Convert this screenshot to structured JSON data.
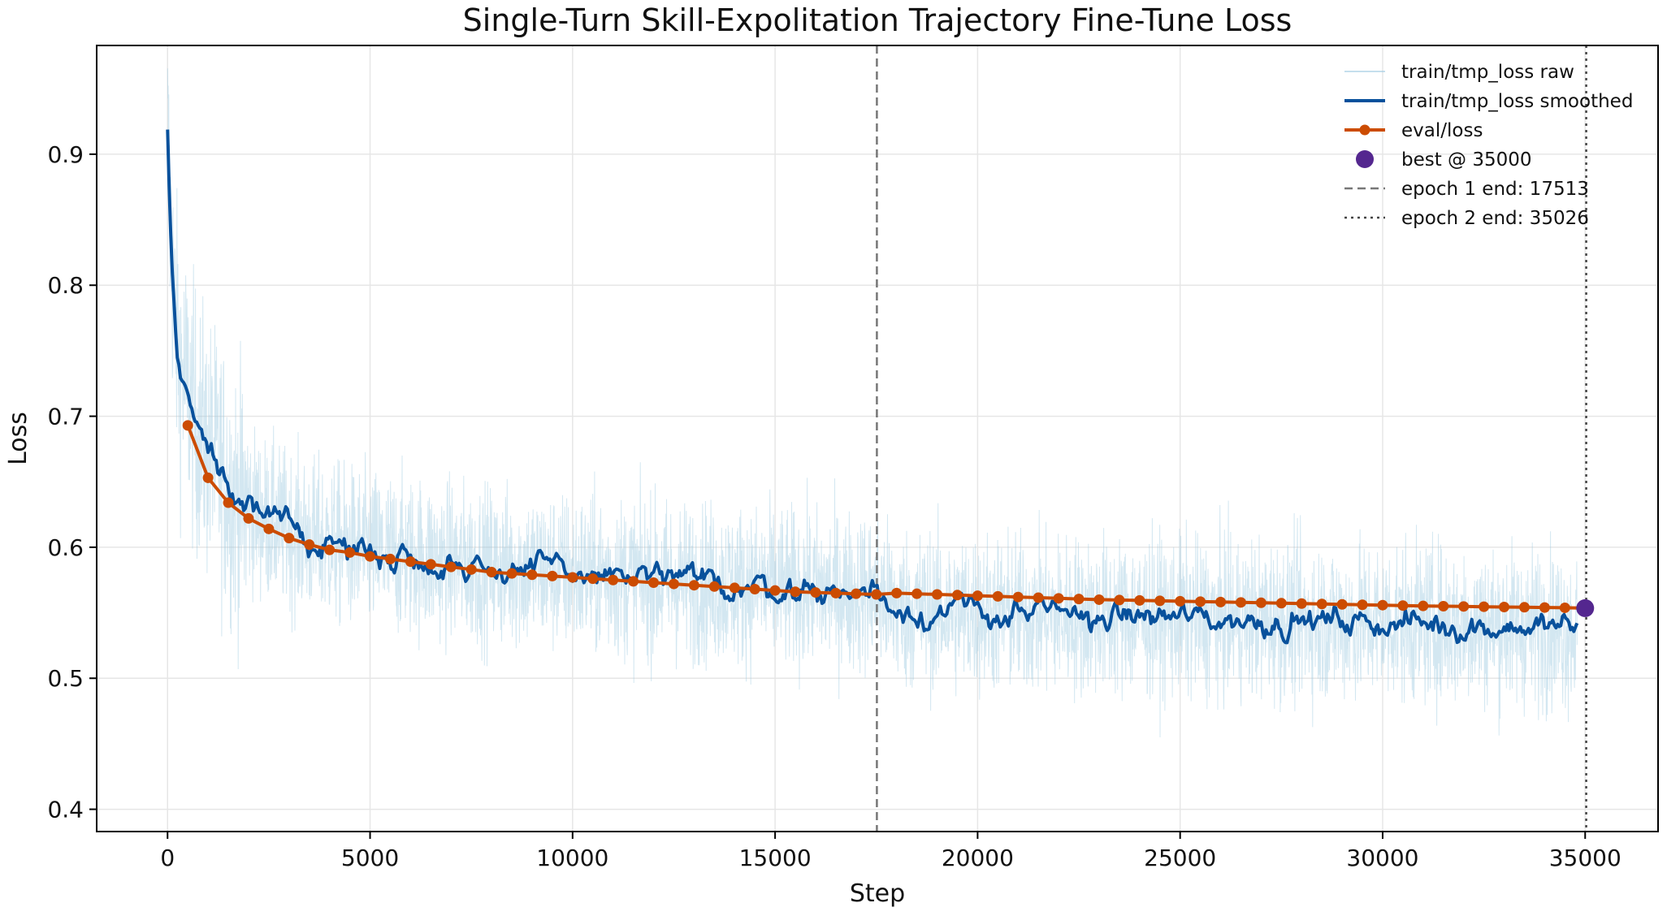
{
  "chart_data": {
    "type": "line",
    "title": "Single-Turn Skill-Expolitation Trajectory Fine-Tune Loss",
    "xlabel": "Step",
    "ylabel": "Loss",
    "xlim": [
      -1750,
      36800
    ],
    "ylim": [
      0.383,
      0.983
    ],
    "x_ticks": [
      0,
      5000,
      10000,
      15000,
      20000,
      25000,
      30000,
      35000
    ],
    "y_ticks": [
      0.4,
      0.5,
      0.6,
      0.7,
      0.8,
      0.9
    ],
    "grid": true,
    "legend_position": "top-right",
    "colors": {
      "raw": "#9ecae1",
      "smoothed": "#08519c",
      "eval": "#cc4c02",
      "best": "#54278f",
      "epoch_line": "#777777"
    },
    "series": [
      {
        "name": "train/tmp_loss raw",
        "style": "thin-line",
        "noisy_around": "train/tmp_loss smoothed",
        "band": 0.055
      },
      {
        "name": "train/tmp_loss smoothed",
        "style": "line",
        "x": [
          0,
          100,
          200,
          300,
          500,
          700,
          1000,
          1300,
          1600,
          2000,
          2500,
          3000,
          3500,
          4000,
          5000,
          6000,
          7000,
          8000,
          9000,
          10000,
          11000,
          12000,
          13000,
          14000,
          15000,
          16000,
          17000,
          17513,
          18000,
          19000,
          20000,
          21000,
          22000,
          23000,
          24000,
          25000,
          26000,
          27000,
          28000,
          29000,
          30000,
          31000,
          32000,
          33000,
          34000,
          34800
        ],
        "y": [
          0.915,
          0.82,
          0.77,
          0.74,
          0.72,
          0.695,
          0.675,
          0.66,
          0.64,
          0.63,
          0.62,
          0.612,
          0.607,
          0.603,
          0.597,
          0.593,
          0.588,
          0.585,
          0.583,
          0.58,
          0.578,
          0.575,
          0.573,
          0.571,
          0.569,
          0.567,
          0.566,
          0.565,
          0.553,
          0.551,
          0.55,
          0.549,
          0.548,
          0.547,
          0.547,
          0.546,
          0.545,
          0.545,
          0.544,
          0.543,
          0.543,
          0.542,
          0.541,
          0.54,
          0.539,
          0.538
        ]
      },
      {
        "name": "eval/loss",
        "style": "line-markers",
        "x": [
          500,
          1000,
          1500,
          2000,
          2500,
          3000,
          3500,
          4000,
          4500,
          5000,
          5500,
          6000,
          6500,
          7000,
          7500,
          8000,
          8500,
          9000,
          9500,
          10000,
          10500,
          11000,
          11500,
          12000,
          12500,
          13000,
          13500,
          14000,
          14500,
          15000,
          15500,
          16000,
          16500,
          17000,
          17500,
          18000,
          18500,
          19000,
          19500,
          20000,
          20500,
          21000,
          21500,
          22000,
          22500,
          23000,
          23500,
          24000,
          24500,
          25000,
          25500,
          26000,
          26500,
          27000,
          27500,
          28000,
          28500,
          29000,
          29500,
          30000,
          30500,
          31000,
          31500,
          32000,
          32500,
          33000,
          33500,
          34000,
          34500,
          35000
        ],
        "y": [
          0.693,
          0.653,
          0.634,
          0.622,
          0.614,
          0.607,
          0.602,
          0.598,
          0.596,
          0.593,
          0.591,
          0.589,
          0.587,
          0.585,
          0.583,
          0.581,
          0.58,
          0.579,
          0.578,
          0.577,
          0.576,
          0.575,
          0.574,
          0.573,
          0.572,
          0.571,
          0.57,
          0.569,
          0.568,
          0.567,
          0.566,
          0.5655,
          0.565,
          0.5645,
          0.564,
          0.565,
          0.5645,
          0.564,
          0.5635,
          0.563,
          0.5625,
          0.562,
          0.5615,
          0.561,
          0.5605,
          0.56,
          0.5597,
          0.5594,
          0.5591,
          0.5588,
          0.5585,
          0.5582,
          0.5579,
          0.5576,
          0.5573,
          0.557,
          0.5567,
          0.5564,
          0.5561,
          0.5558,
          0.5555,
          0.5552,
          0.555,
          0.5548,
          0.5546,
          0.5544,
          0.5542,
          0.554,
          0.5538,
          0.5535
        ]
      }
    ],
    "best_point": {
      "label": "best @ 35000",
      "x": 35000,
      "y": 0.5535
    },
    "vlines": [
      {
        "label": "epoch 1 end: 17513",
        "x": 17513,
        "style": "dashed"
      },
      {
        "label": "epoch 2 end: 35026",
        "x": 35026,
        "style": "dotted"
      }
    ]
  }
}
